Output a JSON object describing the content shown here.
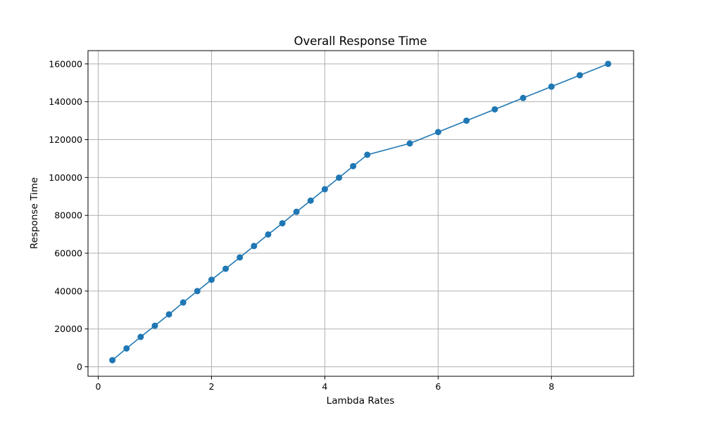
{
  "chart_data": {
    "type": "line",
    "title": "Overall Response Time",
    "xlabel": "Lambda Rates",
    "ylabel": "Response Time",
    "xlim": [
      -0.18,
      9.45
    ],
    "ylim": [
      -5000,
      167000
    ],
    "xticks": [
      0,
      2,
      4,
      6,
      8
    ],
    "yticks": [
      0,
      20000,
      40000,
      60000,
      80000,
      100000,
      120000,
      140000,
      160000
    ],
    "grid": true,
    "marker": "circle",
    "color": "#1f77b4",
    "series": [
      {
        "x": [
          0.25,
          0.5,
          0.75,
          1.0,
          1.25,
          1.5,
          1.75,
          2.0,
          2.25,
          2.5,
          2.75,
          3.0,
          3.25,
          3.5,
          3.75,
          4.0,
          4.25,
          4.5,
          4.75,
          5.5,
          6.0,
          6.5,
          7.0,
          7.5,
          8.0,
          8.5,
          9.0
        ],
        "values": [
          3500,
          9700,
          15800,
          21700,
          27700,
          34000,
          40000,
          46000,
          51800,
          57800,
          63800,
          69900,
          75800,
          81900,
          87800,
          93800,
          99900,
          106000,
          112000,
          118000,
          124000,
          130000,
          136000,
          142000,
          148000,
          154000,
          160000
        ]
      }
    ]
  }
}
